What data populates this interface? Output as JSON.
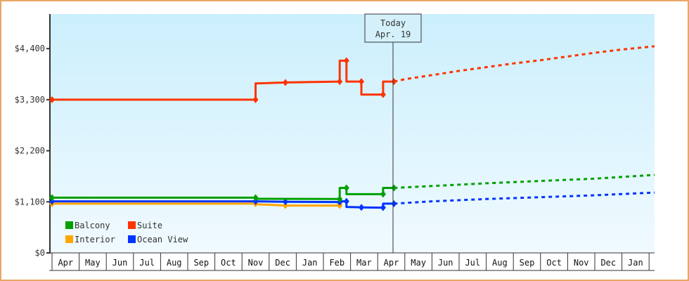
{
  "chart_data": {
    "type": "line",
    "title": "",
    "xlabel": "",
    "ylabel": "",
    "ylim": [
      0,
      4950
    ],
    "y_ticks": [
      {
        "value": 0,
        "label": "$0"
      },
      {
        "value": 1100,
        "label": "$1,100"
      },
      {
        "value": 2200,
        "label": "$2,200"
      },
      {
        "value": 3300,
        "label": "$3,300"
      },
      {
        "value": 4400,
        "label": "$4,400"
      }
    ],
    "x_months": [
      "Apr",
      "May",
      "Jun",
      "Jul",
      "Aug",
      "Sep",
      "Oct",
      "Nov",
      "Dec",
      "Jan",
      "Feb",
      "Mar",
      "Apr",
      "May",
      "Jun",
      "Jul",
      "Aug",
      "Sep",
      "Oct",
      "Nov",
      "Dec",
      "Jan"
    ],
    "x_unit": "month index from start (0 = first Apr, fractional = within month)",
    "today_marker": {
      "line1": "Today",
      "line2": "Apr. 19",
      "x": 12.6
    },
    "legend": {
      "position": "bottom-left inside plot",
      "entries": [
        {
          "name": "Balcony",
          "color": "#00a000"
        },
        {
          "name": "Suite",
          "color": "#ff3300"
        },
        {
          "name": "Interior",
          "color": "#ffa500"
        },
        {
          "name": "Ocean View",
          "color": "#0033ff"
        }
      ]
    },
    "grid": false,
    "series": [
      {
        "name": "Suite",
        "color": "#ff3300",
        "historical": [
          [
            0,
            3300
          ],
          [
            7.5,
            3300
          ],
          [
            7.5,
            3650
          ],
          [
            8.6,
            3670
          ],
          [
            10.6,
            3690
          ],
          [
            10.6,
            4140
          ],
          [
            10.85,
            4140
          ],
          [
            10.85,
            3690
          ],
          [
            11.4,
            3690
          ],
          [
            11.4,
            3410
          ],
          [
            12.2,
            3410
          ],
          [
            12.2,
            3690
          ],
          [
            12.6,
            3690
          ]
        ],
        "projected": [
          [
            12.6,
            3690
          ],
          [
            13.0,
            3740
          ],
          [
            14.0,
            3830
          ],
          [
            15.0,
            3920
          ],
          [
            16.0,
            4000
          ],
          [
            17.0,
            4080
          ],
          [
            18.0,
            4150
          ],
          [
            19.0,
            4230
          ],
          [
            20.0,
            4310
          ],
          [
            21.0,
            4380
          ],
          [
            22.2,
            4450
          ]
        ]
      },
      {
        "name": "Balcony",
        "color": "#00a000",
        "historical": [
          [
            0,
            1190
          ],
          [
            7.5,
            1190
          ],
          [
            7.5,
            1165
          ],
          [
            10.6,
            1160
          ],
          [
            10.6,
            1400
          ],
          [
            10.85,
            1400
          ],
          [
            10.85,
            1265
          ],
          [
            12.2,
            1265
          ],
          [
            12.2,
            1400
          ],
          [
            12.6,
            1400
          ]
        ],
        "projected": [
          [
            12.6,
            1400
          ],
          [
            14.0,
            1440
          ],
          [
            16.0,
            1500
          ],
          [
            18.0,
            1550
          ],
          [
            20.0,
            1600
          ],
          [
            22.2,
            1680
          ]
        ]
      },
      {
        "name": "Ocean View",
        "color": "#0033ff",
        "historical": [
          [
            0,
            1110
          ],
          [
            7.5,
            1110
          ],
          [
            8.6,
            1100
          ],
          [
            10.6,
            1095
          ],
          [
            10.6,
            1110
          ],
          [
            10.85,
            1110
          ],
          [
            10.85,
            990
          ],
          [
            11.4,
            980
          ],
          [
            12.2,
            975
          ],
          [
            12.2,
            1060
          ],
          [
            12.6,
            1060
          ]
        ],
        "projected": [
          [
            12.6,
            1060
          ],
          [
            14.0,
            1110
          ],
          [
            16.0,
            1160
          ],
          [
            18.0,
            1200
          ],
          [
            20.0,
            1240
          ],
          [
            22.2,
            1300
          ]
        ]
      },
      {
        "name": "Interior",
        "color": "#ffa500",
        "historical": [
          [
            0,
            1060
          ],
          [
            7.5,
            1060
          ],
          [
            7.5,
            1050
          ],
          [
            8.6,
            1020
          ],
          [
            10.6,
            1020
          ],
          [
            10.6,
            1060
          ]
        ],
        "projected": []
      }
    ]
  }
}
